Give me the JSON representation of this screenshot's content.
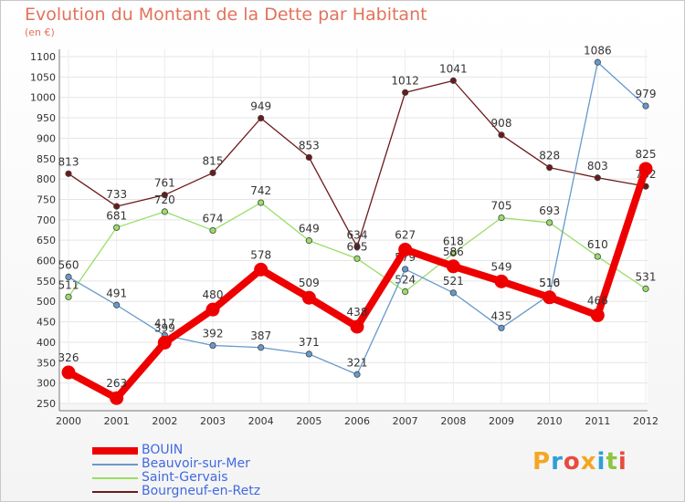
{
  "header": {
    "title": "Evolution du Montant de la Dette par Habitant",
    "unit": "(en €)"
  },
  "logo": {
    "text": "Proxiti",
    "colors": [
      "#f5a623",
      "#2e9fd8",
      "#e84c3d",
      "#f5a623",
      "#2e9fd8",
      "#8cc63f",
      "#e84c3d"
    ]
  },
  "chart_data": {
    "type": "line",
    "title": "Evolution du Montant de la Dette par Habitant",
    "ylabel": "(en €)",
    "xlabel": "",
    "ylim": [
      250,
      1100
    ],
    "yticks": [
      250,
      300,
      350,
      400,
      450,
      500,
      550,
      600,
      650,
      700,
      750,
      800,
      850,
      900,
      950,
      1000,
      1050,
      1100
    ],
    "x": [
      "2000",
      "2001",
      "2002",
      "2003",
      "2004",
      "2005",
      "2006",
      "2007",
      "2008",
      "2009",
      "2010",
      "2011",
      "2012"
    ],
    "grid": true,
    "legend_position": "bottom-left",
    "series": [
      {
        "name": "Bourgneuf-en-Retz",
        "color": "#6b1a1a",
        "values": [
          813,
          733,
          761,
          815,
          949,
          853,
          634,
          1012,
          1041,
          908,
          828,
          803,
          782
        ],
        "labels": [
          "813",
          "733",
          "761",
          "815",
          "949",
          "853",
          "634",
          "1012",
          "1041",
          "908",
          "828",
          "803",
          "782"
        ]
      },
      {
        "name": "Saint-Gervais",
        "color": "#99dd66",
        "values": [
          511,
          681,
          720,
          674,
          742,
          649,
          605,
          524,
          618,
          705,
          693,
          610,
          531
        ],
        "labels": [
          "511",
          "681",
          "720",
          "674",
          "742",
          "649",
          "605",
          "524",
          "618",
          "705",
          "693",
          "610",
          "531"
        ]
      },
      {
        "name": "Beauvoir-sur-Mer",
        "color": "#6699cc",
        "values": [
          560,
          491,
          417,
          392,
          387,
          371,
          321,
          579,
          521,
          435,
          516,
          1086,
          979
        ],
        "labels": [
          "560",
          "491",
          "417",
          "392",
          "387",
          "371",
          "321",
          "579",
          "521",
          "435",
          "516",
          "1086",
          "979"
        ]
      },
      {
        "name": "BOUIN",
        "color": "#ee0000",
        "values": [
          326,
          263,
          399,
          480,
          578,
          509,
          438,
          627,
          586,
          549,
          510,
          466,
          825
        ],
        "labels": [
          "326",
          "263",
          "399",
          "480",
          "578",
          "509",
          "438",
          "627",
          "586",
          "549",
          "510",
          "466",
          "825"
        ]
      }
    ],
    "legend_order": [
      "BOUIN",
      "Beauvoir-sur-Mer",
      "Saint-Gervais",
      "Bourgneuf-en-Retz"
    ]
  }
}
